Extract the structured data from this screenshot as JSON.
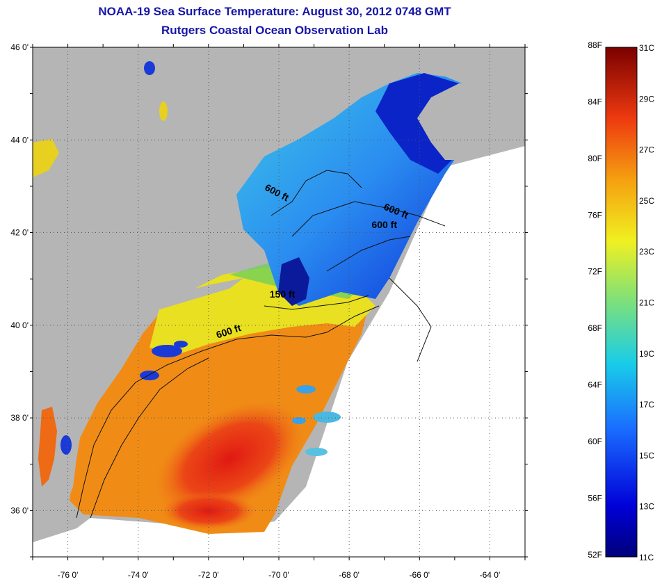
{
  "title": "NOAA-19 Sea Surface Temperature:  August 30, 2012 0748 GMT",
  "subtitle": "Rutgers Coastal Ocean Observation Lab",
  "map": {
    "lon_range": [
      -77,
      -63
    ],
    "lat_range": [
      35,
      46
    ],
    "lat_ticks": [
      "46 0'",
      "44 0'",
      "42 0'",
      "40 0'",
      "38 0'",
      "36 0'"
    ],
    "lon_ticks": [
      "-76 0'",
      "-74 0'",
      "-72 0'",
      "-70 0'",
      "-68 0'",
      "-66 0'",
      "-64 0'"
    ],
    "contour_labels": [
      {
        "text": "600 ft",
        "lon": -70.1,
        "lat": 42.8,
        "rot": 28
      },
      {
        "text": "600 ft",
        "lon": -66.7,
        "lat": 42.4,
        "rot": 22
      },
      {
        "text": "600 ft",
        "lon": -67.0,
        "lat": 42.1,
        "rot": 0
      },
      {
        "text": "150 ft",
        "lon": -69.9,
        "lat": 40.6,
        "rot": 0
      },
      {
        "text": "600 ft",
        "lon": -71.4,
        "lat": 39.8,
        "rot": -18
      }
    ],
    "colors": {
      "land": "#b5b5b5",
      "warm": "#f08a14",
      "hot": "#e8231a",
      "cool": "#1c3cf0",
      "cold": "#0a1490",
      "mid": "#3fc6f0",
      "yellow": "#e8e820",
      "green": "#72d05a"
    }
  },
  "colorbar": {
    "fahrenheit_labels": [
      "88F",
      "84F",
      "80F",
      "76F",
      "72F",
      "68F",
      "64F",
      "60F",
      "56F",
      "52F"
    ],
    "celsius_labels": [
      "31C",
      "29C",
      "27C",
      "25C",
      "23C",
      "21C",
      "19C",
      "17C",
      "15C",
      "13C",
      "11C"
    ],
    "range_c": [
      11,
      31
    ]
  }
}
